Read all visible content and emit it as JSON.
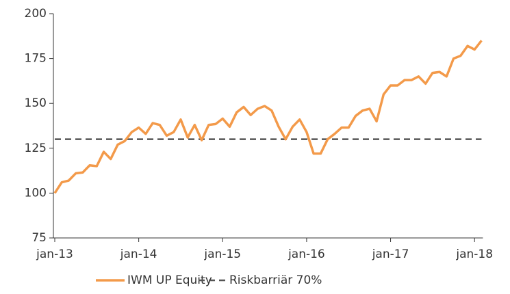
{
  "chart_data": {
    "type": "line",
    "categories": [
      "jan-13",
      null,
      null,
      null,
      null,
      null,
      null,
      null,
      null,
      null,
      null,
      null,
      "jan-14",
      null,
      null,
      null,
      null,
      null,
      null,
      null,
      null,
      null,
      null,
      null,
      "jan-15",
      null,
      null,
      null,
      null,
      null,
      null,
      null,
      null,
      null,
      null,
      null,
      "jan-16",
      null,
      null,
      null,
      null,
      null,
      null,
      null,
      null,
      null,
      null,
      null,
      "jan-17",
      null,
      null,
      null,
      null,
      null,
      null,
      null,
      null,
      null,
      null,
      null,
      "jan-18",
      null
    ],
    "series": [
      {
        "name": "IWM UP Equity",
        "color": "#f39a4a",
        "values": [
          100,
          106,
          107,
          111,
          111.5,
          115.5,
          115,
          123,
          119,
          127,
          129,
          134,
          136.5,
          133,
          139,
          138,
          132,
          134,
          141,
          131,
          138,
          129.5,
          138,
          138.5,
          141.5,
          137,
          145,
          148,
          143.5,
          147,
          148.5,
          146,
          137,
          130,
          137,
          141,
          134,
          122,
          122,
          130,
          133,
          136.5,
          136.5,
          143,
          146,
          147,
          140,
          155,
          160,
          160,
          163,
          163,
          165,
          161,
          167,
          167.5,
          165,
          175,
          176.5,
          182,
          180,
          185
        ]
      }
    ],
    "reference_line": {
      "name": "Riskbarriär 70%",
      "value": 130,
      "color": "#555555",
      "dashed": true
    },
    "ylim": [
      75,
      200
    ],
    "yticks": [
      75,
      100,
      125,
      150,
      175,
      200
    ],
    "grid": false,
    "legend": "bottom"
  }
}
